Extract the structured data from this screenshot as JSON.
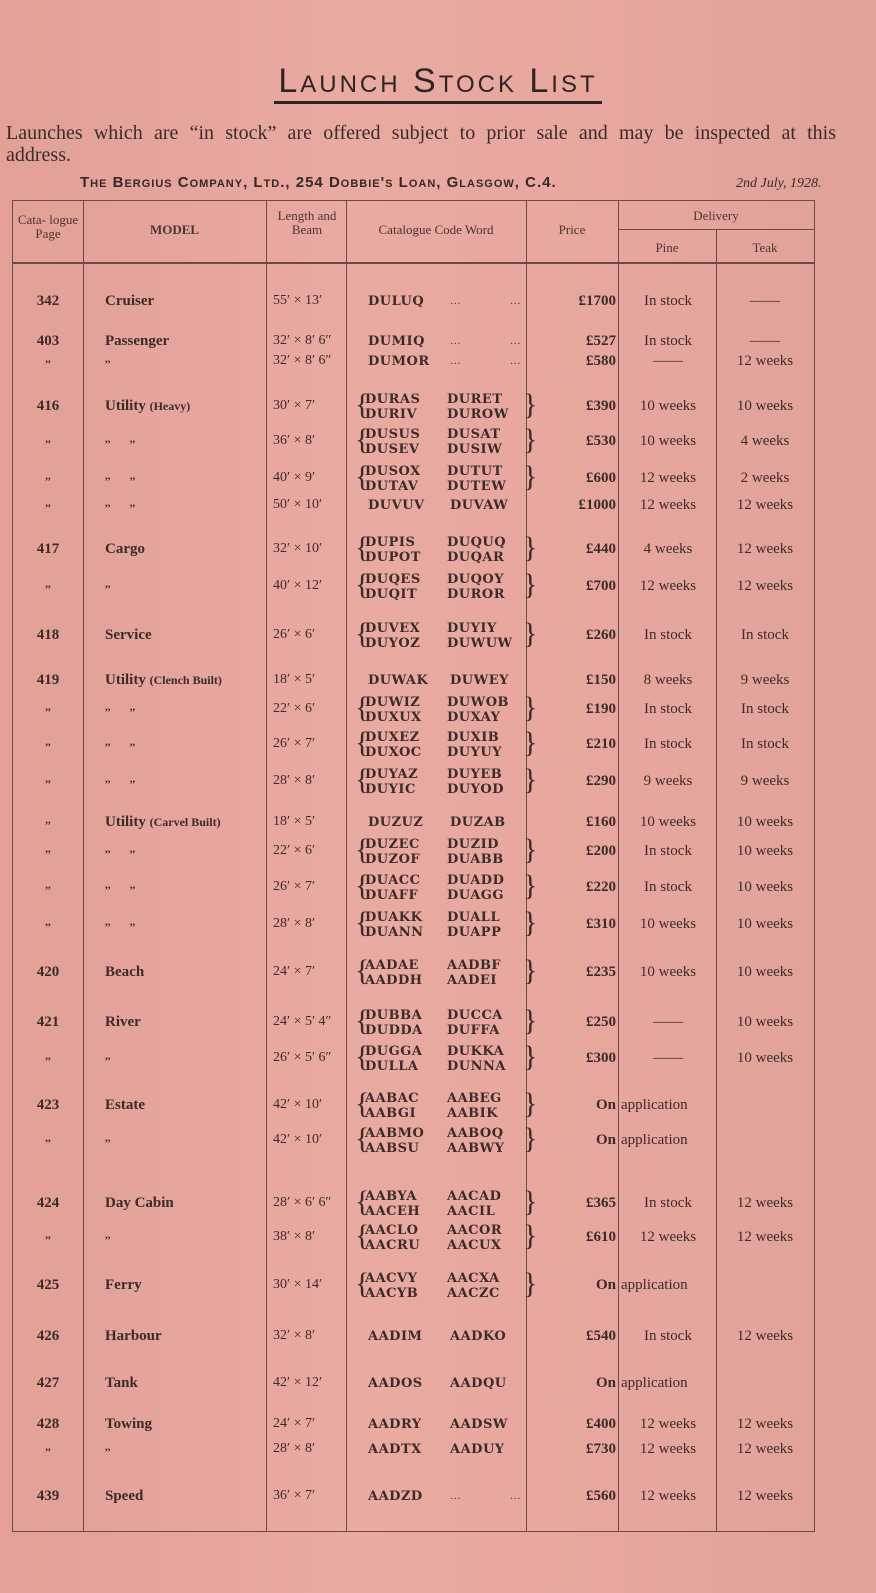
{
  "title": "Launch Stock List",
  "intro": "Launches which are “in stock” are offered subject to prior sale and may be inspected at this address.",
  "company": "The Bergius Company, Ltd., 254 Dobbie's Loan, Glasgow, C.4.",
  "date": "2nd July, 1928.",
  "headers": {
    "page": "Cata- logue Page",
    "model": "MODEL",
    "length": "Length and Beam",
    "code": "Catalogue Code Word",
    "price": "Price",
    "delivery": "Delivery",
    "pine": "Pine",
    "teak": "Teak"
  },
  "rows": [
    {
      "page": "342",
      "model": "Cruiser",
      "lb": "55′ × 13′",
      "code": [
        [
          "DULUQ",
          "...",
          "..."
        ]
      ],
      "price": "£1700",
      "pine": "In stock",
      "teak": "——"
    },
    {
      "page": "403",
      "model": "Passenger",
      "lb": "32′ × 8′ 6″",
      "code": [
        [
          "DUMIQ",
          "...",
          "..."
        ]
      ],
      "price": "£527",
      "pine": "In stock",
      "teak": "——"
    },
    {
      "page": ",,",
      "model": ",,",
      "lb": "32′ × 8′ 6″",
      "code": [
        [
          "DUMOR",
          "...",
          "..."
        ]
      ],
      "price": "£580",
      "pine": "——",
      "teak": "12 weeks"
    },
    {
      "page": "416",
      "model": "Utility",
      "model_note": "(Heavy)",
      "lb": "30′ × 7′",
      "code": [
        [
          "DURAS",
          "DURET"
        ],
        [
          "DURIV",
          "DUROW"
        ]
      ],
      "price": "£390",
      "pine": "10 weeks",
      "teak": "10 weeks"
    },
    {
      "page": ",,",
      "model": ",,       ,,",
      "lb": "36′ × 8′",
      "code": [
        [
          "DUSUS",
          "DUSAT"
        ],
        [
          "DUSEV",
          "DUSIW"
        ]
      ],
      "price": "£530",
      "pine": "10 weeks",
      "teak": "4 weeks"
    },
    {
      "page": ",,",
      "model": ",,       ,,",
      "lb": "40′ × 9′",
      "code": [
        [
          "DUSOX",
          "DUTUT"
        ],
        [
          "DUTAV",
          "DUTEW"
        ]
      ],
      "price": "£600",
      "pine": "12 weeks",
      "teak": "2 weeks"
    },
    {
      "page": ",,",
      "model": ",,       ,,",
      "lb": "50′ × 10′",
      "code": [
        [
          "DUVUV",
          "DUVAW"
        ]
      ],
      "price": "£1000",
      "pine": "12 weeks",
      "teak": "12 weeks"
    },
    {
      "page": "417",
      "model": "Cargo",
      "lb": "32′ × 10′",
      "code": [
        [
          "DUPIS",
          "DUQUQ"
        ],
        [
          "DUPOT",
          "DUQAR"
        ]
      ],
      "price": "£440",
      "pine": "4 weeks",
      "teak": "12 weeks"
    },
    {
      "page": ",,",
      "model": ",,",
      "lb": "40′ × 12′",
      "code": [
        [
          "DUQES",
          "DUQOY"
        ],
        [
          "DUQIT",
          "DUROR"
        ]
      ],
      "price": "£700",
      "pine": "12 weeks",
      "teak": "12 weeks"
    },
    {
      "page": "418",
      "model": "Service",
      "lb": "26′ × 6′",
      "code": [
        [
          "DUVEX",
          "DUYIY"
        ],
        [
          "DUYOZ",
          "DUWUW"
        ]
      ],
      "price": "£260",
      "pine": "In stock",
      "teak": "In stock"
    },
    {
      "page": "419",
      "model": "Utility",
      "model_note": "(Clench Built)",
      "lb": "18′ × 5′",
      "code": [
        [
          "DUWAK",
          "DUWEY"
        ]
      ],
      "price": "£150",
      "pine": "8 weeks",
      "teak": "9 weeks"
    },
    {
      "page": ",,",
      "model": ",,       ,,",
      "lb": "22′ × 6′",
      "code": [
        [
          "DUWIZ",
          "DUWOB"
        ],
        [
          "DUXUX",
          "DUXAY"
        ]
      ],
      "price": "£190",
      "pine": "In stock",
      "teak": "In stock"
    },
    {
      "page": ",,",
      "model": ",,       ,,",
      "lb": "26′ × 7′",
      "code": [
        [
          "DUXEZ",
          "DUXIB"
        ],
        [
          "DUXOC",
          "DUYUY"
        ]
      ],
      "price": "£210",
      "pine": "In stock",
      "teak": "In stock"
    },
    {
      "page": ",,",
      "model": ",,       ,,",
      "lb": "28′ × 8′",
      "code": [
        [
          "DUYAZ",
          "DUYEB"
        ],
        [
          "DUYIC",
          "DUYOD"
        ]
      ],
      "price": "£290",
      "pine": "9 weeks",
      "teak": "9 weeks"
    },
    {
      "page": ",,",
      "model": "Utility",
      "model_note": "(Carvel Built)",
      "lb": "18′ × 5′",
      "code": [
        [
          "DUZUZ",
          "DUZAB"
        ]
      ],
      "price": "£160",
      "pine": "10 weeks",
      "teak": "10 weeks"
    },
    {
      "page": ",,",
      "model": ",,       ,,",
      "lb": "22′ × 6′",
      "code": [
        [
          "DUZEC",
          "DUZID"
        ],
        [
          "DUZOF",
          "DUABB"
        ]
      ],
      "price": "£200",
      "pine": "In stock",
      "teak": "10 weeks"
    },
    {
      "page": ",,",
      "model": ",,       ,,",
      "lb": "26′ × 7′",
      "code": [
        [
          "DUACC",
          "DUADD"
        ],
        [
          "DUAFF",
          "DUAGG"
        ]
      ],
      "price": "£220",
      "pine": "In stock",
      "teak": "10 weeks"
    },
    {
      "page": ",,",
      "model": ",,       ,,",
      "lb": "28′ × 8′",
      "code": [
        [
          "DUAKK",
          "DUALL"
        ],
        [
          "DUANN",
          "DUAPP"
        ]
      ],
      "price": "£310",
      "pine": "10 weeks",
      "teak": "10 weeks"
    },
    {
      "page": "420",
      "model": "Beach",
      "lb": "24′ × 7′",
      "code": [
        [
          "AADAE",
          "AADBF"
        ],
        [
          "AADDH",
          "AADEI"
        ]
      ],
      "price": "£235",
      "pine": "10 weeks",
      "teak": "10 weeks"
    },
    {
      "page": "421",
      "model": "River",
      "lb": "24′ × 5′ 4″",
      "code": [
        [
          "DUBBA",
          "DUCCA"
        ],
        [
          "DUDDA",
          "DUFFA"
        ]
      ],
      "price": "£250",
      "pine": "——",
      "teak": "10 weeks"
    },
    {
      "page": ",,",
      "model": ",,",
      "lb": "26′ × 5′ 6″",
      "code": [
        [
          "DUGGA",
          "DUKKA"
        ],
        [
          "DULLA",
          "DUNNA"
        ]
      ],
      "price": "£300",
      "pine": "——",
      "teak": "10 weeks"
    },
    {
      "page": "423",
      "model": "Estate",
      "lb": "42′ × 10′",
      "code": [
        [
          "AABAC",
          "AABEG"
        ],
        [
          "AABGI",
          "AABIK"
        ]
      ],
      "price": "On",
      "pine": "application",
      "teak": ""
    },
    {
      "page": ",,",
      "model": ",,",
      "lb": "42′ × 10′",
      "code": [
        [
          "AABMO",
          "AABOQ"
        ],
        [
          "AABSU",
          "AABWY"
        ]
      ],
      "price": "On",
      "pine": "application",
      "teak": ""
    },
    {
      "page": "424",
      "model": "Day Cabin",
      "lb": "28′ × 6′ 6″",
      "code": [
        [
          "AABYA",
          "AACAD"
        ],
        [
          "AACEH",
          "AACIL"
        ]
      ],
      "price": "£365",
      "pine": "In stock",
      "teak": "12 weeks"
    },
    {
      "page": ",,",
      "model": ",,",
      "lb": "38′ × 8′",
      "code": [
        [
          "AACLO",
          "AACOR"
        ],
        [
          "AACRU",
          "AACUX"
        ]
      ],
      "price": "£610",
      "pine": "12 weeks",
      "teak": "12 weeks"
    },
    {
      "page": "425",
      "model": "Ferry",
      "lb": "30′ × 14′",
      "code": [
        [
          "AACVY",
          "AACXA"
        ],
        [
          "AACYB",
          "AACZC"
        ]
      ],
      "price": "On",
      "pine": "application",
      "teak": ""
    },
    {
      "page": "426",
      "model": "Harbour",
      "lb": "32′ × 8′",
      "code": [
        [
          "AADIM",
          "AADKO"
        ]
      ],
      "price": "£540",
      "pine": "In stock",
      "teak": "12 weeks"
    },
    {
      "page": "427",
      "model": "Tank",
      "lb": "42′ × 12′",
      "code": [
        [
          "AADOS",
          "AADQU"
        ]
      ],
      "price": "On",
      "pine": "application",
      "teak": ""
    },
    {
      "page": "428",
      "model": "Towing",
      "lb": "24′ × 7′",
      "code": [
        [
          "AADRY",
          "AADSW"
        ]
      ],
      "price": "£400",
      "pine": "12 weeks",
      "teak": "12 weeks"
    },
    {
      "page": ",,",
      "model": ",,",
      "lb": "28′ × 8′",
      "code": [
        [
          "AADTX",
          "AADUY"
        ]
      ],
      "price": "£730",
      "pine": "12 weeks",
      "teak": "12 weeks"
    },
    {
      "page": "439",
      "model": "Speed",
      "lb": "36′ × 7′",
      "code": [
        [
          "AADZD",
          "...",
          "..."
        ]
      ],
      "price": "£560",
      "pine": "12 weeks",
      "teak": "12 weeks"
    }
  ],
  "colors": {
    "paper": "#e6a59c",
    "ink": "#3b2b2a",
    "rule": "#6d4a48"
  }
}
